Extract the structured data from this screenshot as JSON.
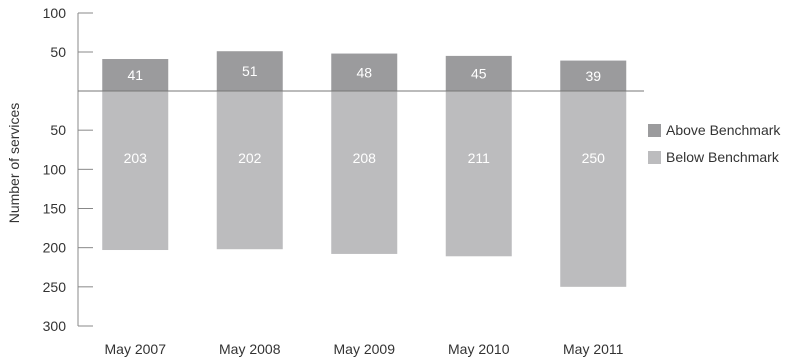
{
  "chart_data": {
    "type": "bar",
    "title": "",
    "xlabel": "",
    "ylabel": "Number of services",
    "categories": [
      "May 2007",
      "May 2008",
      "May 2009",
      "May 2010",
      "May 2011"
    ],
    "series": [
      {
        "name": "Above Benchmark",
        "values": [
          41,
          51,
          48,
          45,
          39
        ],
        "direction": "up",
        "color": "#9b9b9d"
      },
      {
        "name": "Below Benchmark",
        "values": [
          203,
          202,
          208,
          211,
          250
        ],
        "direction": "down",
        "color": "#bcbcbe"
      }
    ],
    "yticks_up": [
      100,
      50
    ],
    "yticks_down": [
      50,
      100,
      150,
      200,
      250,
      300
    ],
    "ylim_up": [
      0,
      100
    ],
    "ylim_down": [
      0,
      300
    ],
    "grid": false,
    "legend_position": "right",
    "baseline_color": "#777777",
    "axis_color": "#888888",
    "label_color": "#ffffff"
  }
}
